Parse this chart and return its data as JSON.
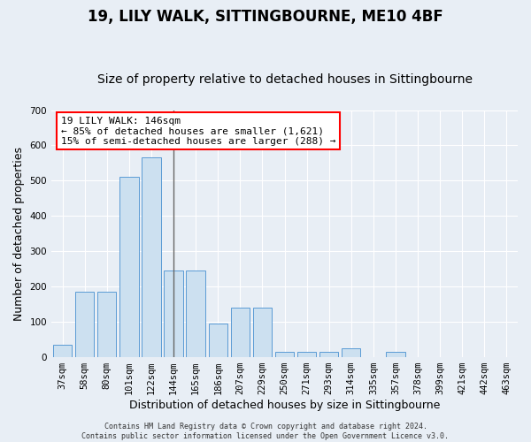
{
  "title": "19, LILY WALK, SITTINGBOURNE, ME10 4BF",
  "subtitle": "Size of property relative to detached houses in Sittingbourne",
  "xlabel": "Distribution of detached houses by size in Sittingbourne",
  "ylabel": "Number of detached properties",
  "categories": [
    "37sqm",
    "58sqm",
    "80sqm",
    "101sqm",
    "122sqm",
    "144sqm",
    "165sqm",
    "186sqm",
    "207sqm",
    "229sqm",
    "250sqm",
    "271sqm",
    "293sqm",
    "314sqm",
    "335sqm",
    "357sqm",
    "378sqm",
    "399sqm",
    "421sqm",
    "442sqm",
    "463sqm"
  ],
  "values": [
    35,
    185,
    185,
    510,
    565,
    245,
    245,
    95,
    140,
    140,
    15,
    15,
    15,
    25,
    0,
    15,
    0,
    0,
    0,
    0,
    0
  ],
  "bar_color": "#cce0f0",
  "bar_edge_color": "#5b9bd5",
  "vline_index": 5,
  "vline_color": "#666666",
  "annotation_text": "19 LILY WALK: 146sqm\n← 85% of detached houses are smaller (1,621)\n15% of semi-detached houses are larger (288) →",
  "annotation_box_color": "white",
  "annotation_box_edge_color": "red",
  "bg_color": "#e8eef5",
  "plot_bg_color": "#e8eef5",
  "ylim": [
    0,
    700
  ],
  "yticks": [
    0,
    100,
    200,
    300,
    400,
    500,
    600,
    700
  ],
  "footer": "Contains HM Land Registry data © Crown copyright and database right 2024.\nContains public sector information licensed under the Open Government Licence v3.0.",
  "title_fontsize": 12,
  "subtitle_fontsize": 10,
  "tick_fontsize": 7.5,
  "label_fontsize": 9,
  "annotation_fontsize": 8,
  "footer_fontsize": 6
}
